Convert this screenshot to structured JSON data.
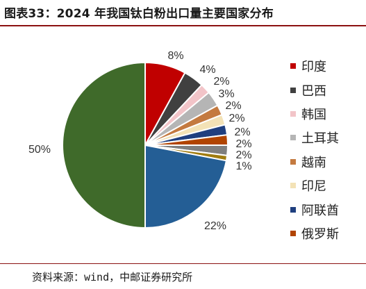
{
  "page": {
    "title": "图表33：2024 年我国钛白粉出口量主要国家分布",
    "source": "资料来源：wind，中邮证券研究所"
  },
  "chart_data": {
    "type": "pie",
    "title": "图表33：2024 年我国钛白粉出口量主要国家分布",
    "legend_position": "right",
    "slices": [
      {
        "name": "印度",
        "value": 8,
        "label": "8%",
        "color": "#c00000"
      },
      {
        "name": "巴西",
        "value": 4,
        "label": "4%",
        "color": "#404040"
      },
      {
        "name": "韩国",
        "value": 2,
        "label": "2%",
        "color": "#f2c4c8"
      },
      {
        "name": "土耳其",
        "value": 3,
        "label": "3%",
        "color": "#b5b5b5"
      },
      {
        "name": "越南",
        "value": 2,
        "label": "2%",
        "color": "#c47a40"
      },
      {
        "name": "印尼",
        "value": 2,
        "label": "2%",
        "color": "#f3e2b6"
      },
      {
        "name": "阿联酋",
        "value": 2,
        "label": "2%",
        "color": "#1f3f7f"
      },
      {
        "name": "俄罗斯",
        "value": 2,
        "label": "2%",
        "color": "#b14400"
      },
      {
        "name": "",
        "value": 2,
        "label": "2%",
        "color": "#7f7f7f"
      },
      {
        "name": "",
        "value": 1,
        "label": "1%",
        "color": "#a07c10"
      },
      {
        "name": "",
        "value": 22,
        "label": "22%",
        "color": "#245e95"
      },
      {
        "name": "",
        "value": 50,
        "label": "50%",
        "color": "#3f6a2a"
      }
    ]
  }
}
